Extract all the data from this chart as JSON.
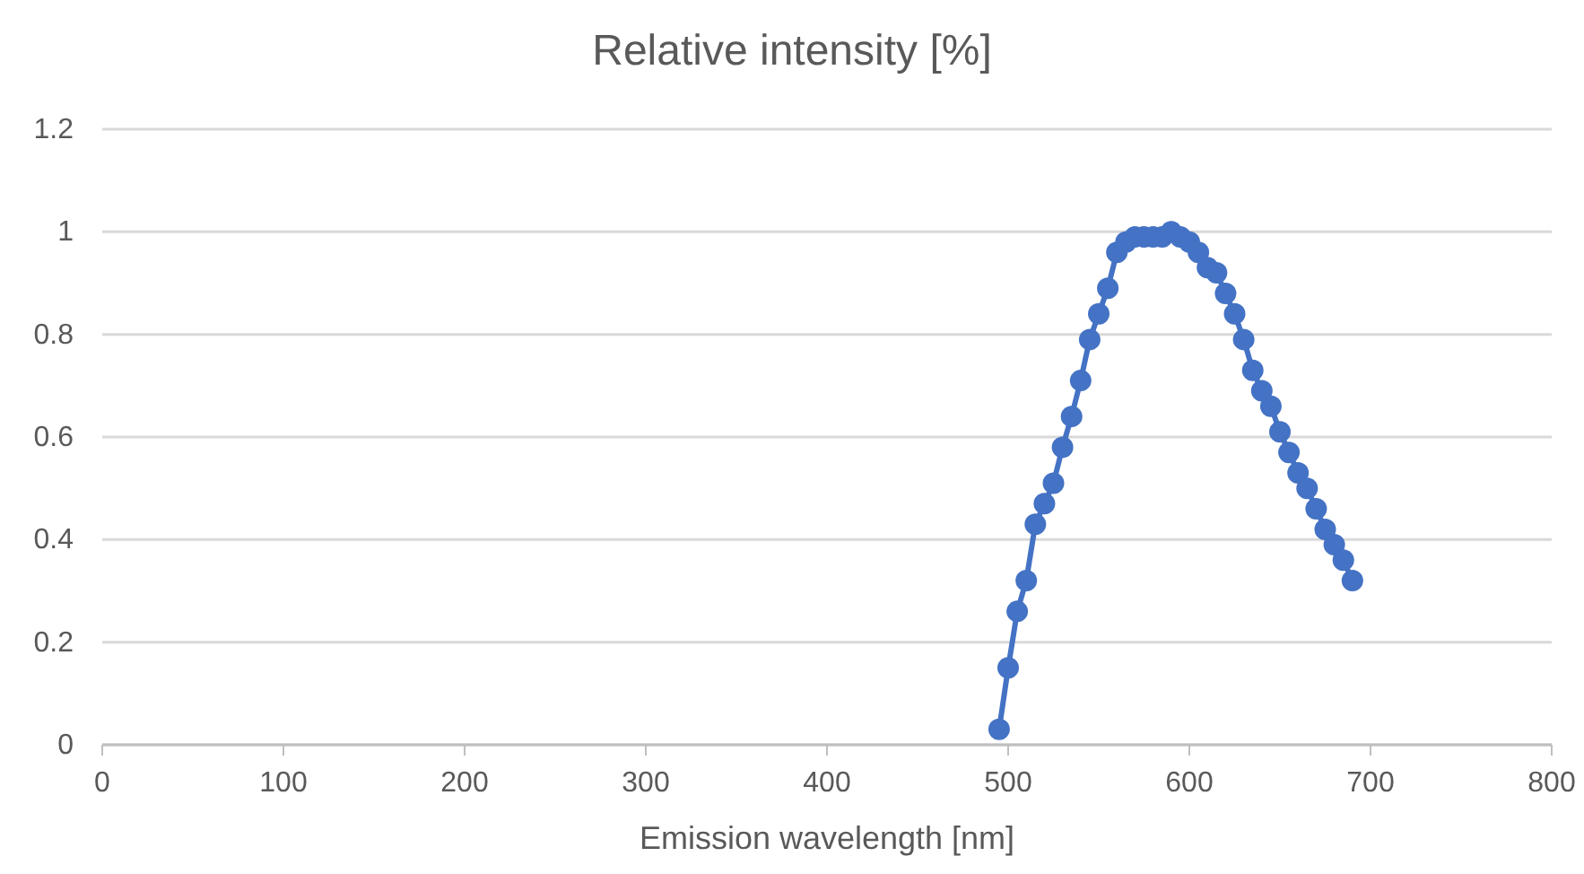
{
  "chart_data": {
    "type": "line",
    "title": "Relative intensity [%]",
    "xlabel": "Emission wavelength [nm]",
    "x": [
      495,
      500,
      505,
      510,
      515,
      520,
      525,
      530,
      535,
      540,
      545,
      550,
      555,
      560,
      565,
      570,
      575,
      580,
      585,
      590,
      595,
      600,
      605,
      610,
      615,
      620,
      625,
      630,
      635,
      640,
      645,
      650,
      655,
      660,
      665,
      670,
      675,
      680,
      685,
      690
    ],
    "series": [
      {
        "color": "#4472c4",
        "values": [
          0.03,
          0.15,
          0.26,
          0.32,
          0.43,
          0.47,
          0.51,
          0.58,
          0.64,
          0.71,
          0.79,
          0.84,
          0.89,
          0.96,
          0.98,
          0.99,
          0.99,
          0.99,
          0.99,
          1.0,
          0.99,
          0.98,
          0.96,
          0.93,
          0.92,
          0.88,
          0.84,
          0.79,
          0.73,
          0.69,
          0.66,
          0.61,
          0.57,
          0.53,
          0.5,
          0.46,
          0.42,
          0.39,
          0.36,
          0.32
        ]
      }
    ],
    "xlim": [
      0,
      800
    ],
    "xticks": [
      0,
      100,
      200,
      300,
      400,
      500,
      600,
      700,
      800
    ],
    "ylim": [
      0,
      1.2
    ],
    "yticks": [
      0,
      0.2,
      0.4,
      0.6,
      0.8,
      1,
      1.2
    ],
    "grid": "y",
    "marker": "circle",
    "line_style": "solid"
  }
}
